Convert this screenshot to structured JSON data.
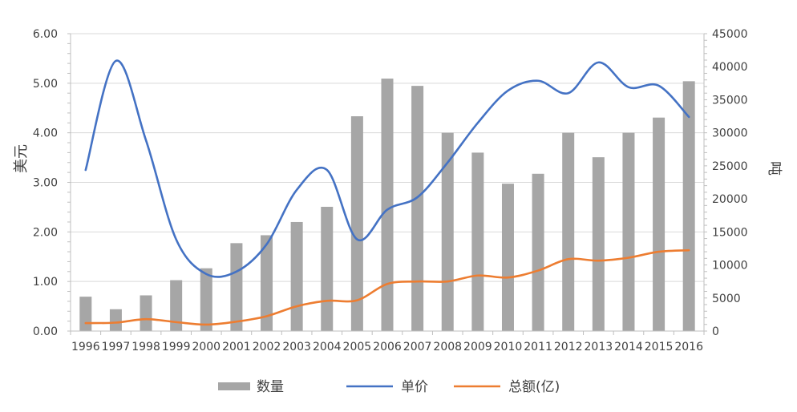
{
  "chart_data": {
    "type": "bar+line",
    "categories": [
      "1996",
      "1997",
      "1998",
      "1999",
      "2000",
      "2001",
      "2002",
      "2003",
      "2004",
      "2005",
      "2006",
      "2007",
      "2008",
      "2009",
      "2010",
      "2011",
      "2012",
      "2013",
      "2014",
      "2015",
      "2016"
    ],
    "series": [
      {
        "name": "数量",
        "type": "bar",
        "axis": "right",
        "color": "#a6a6a6",
        "values": [
          5200,
          3300,
          5400,
          7700,
          9500,
          13300,
          14500,
          16500,
          18800,
          32500,
          38200,
          37100,
          30000,
          27000,
          22300,
          23800,
          30000,
          26300,
          30000,
          32300,
          37800
        ]
      },
      {
        "name": "单价",
        "type": "line",
        "axis": "left",
        "color": "#4472c4",
        "values": [
          3.25,
          5.45,
          3.85,
          1.85,
          1.15,
          1.2,
          1.75,
          2.85,
          3.25,
          1.85,
          2.45,
          2.7,
          3.4,
          4.2,
          4.85,
          5.05,
          4.8,
          5.42,
          4.92,
          4.95,
          4.32
        ]
      },
      {
        "name": "总额(亿)",
        "type": "line",
        "axis": "left",
        "color": "#ed7d31",
        "values": [
          0.16,
          0.17,
          0.24,
          0.18,
          0.13,
          0.19,
          0.3,
          0.5,
          0.61,
          0.62,
          0.95,
          1.0,
          1.0,
          1.12,
          1.08,
          1.22,
          1.45,
          1.42,
          1.48,
          1.6,
          1.63
        ]
      }
    ],
    "ylabel_left": "美元",
    "ylabel_right": "吨",
    "ylim_left": [
      0,
      6
    ],
    "ylim_right": [
      0,
      45000
    ],
    "yticks_left": [
      "0.00",
      "1.00",
      "2.00",
      "3.00",
      "4.00",
      "5.00",
      "6.00"
    ],
    "yticks_right": [
      "0",
      "5000",
      "10000",
      "15000",
      "20000",
      "25000",
      "30000",
      "35000",
      "40000",
      "45000"
    ],
    "grid": true,
    "legend_position": "bottom"
  }
}
